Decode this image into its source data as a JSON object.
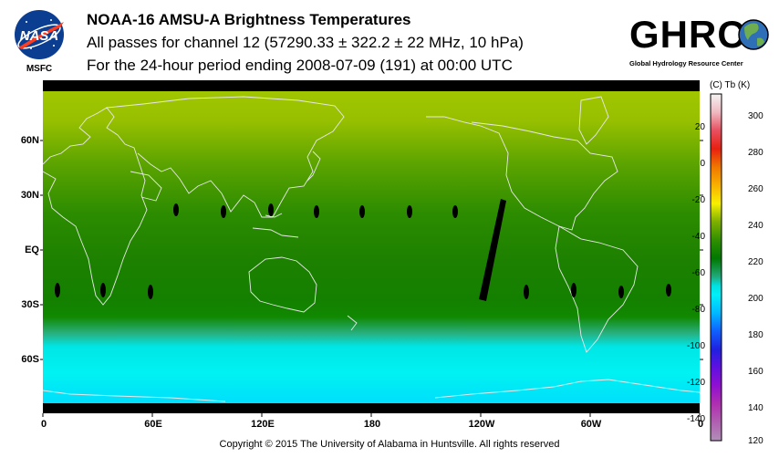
{
  "header": {
    "title": "NOAA-16 AMSU-A Brightness Temperatures",
    "subtitle": "All passes for channel 12 (57290.33 ± 322.2 ± 22 MHz, 10 hPa)",
    "period": "For the 24-hour period ending 2008-07-09 (191) at 00:00 UTC"
  },
  "logos": {
    "nasa_text": "NASA",
    "msfc_text": "MSFC",
    "ghrc_text": "GHRC",
    "ghrc_subtitle": "Global Hydrology Resource Center"
  },
  "map": {
    "lat_labels": [
      "60N",
      "30N",
      "EQ",
      "30S",
      "60S"
    ],
    "lon_labels": [
      "0",
      "60E",
      "120E",
      "180",
      "120W",
      "60W",
      "0"
    ]
  },
  "colorbar": {
    "header": "(C)  Tb  (K)",
    "celsius_ticks": [
      "20",
      "0",
      "-20",
      "-40",
      "-60",
      "-80",
      "-100",
      "-120",
      "-140"
    ],
    "kelvin_ticks": [
      "300",
      "280",
      "260",
      "240",
      "220",
      "200",
      "180",
      "160",
      "140",
      "120"
    ],
    "range_k": [
      120,
      310
    ],
    "colors": {
      "k310": "#f4f4f4",
      "k300": "#f0b8c0",
      "k290": "#e85060",
      "k280": "#e82010",
      "k270": "#f07800",
      "k260": "#f8b000",
      "k250": "#f8f000",
      "k245": "#b8d000",
      "k240": "#7fb000",
      "k230": "#309000",
      "k220": "#007800",
      "k210": "#20a878",
      "k205": "#00e0e0",
      "k200": "#00f0f8",
      "k190": "#00b8ff",
      "k180": "#1060ff",
      "k170": "#2020e0",
      "k160": "#6010e0",
      "k150": "#9010d0",
      "k140": "#b030b0",
      "k130": "#b060b0",
      "k120": "#b090b8"
    }
  },
  "footer": {
    "copyright": "Copyright © 2015 The University of Alabama in Huntsville.  All rights reserved"
  }
}
